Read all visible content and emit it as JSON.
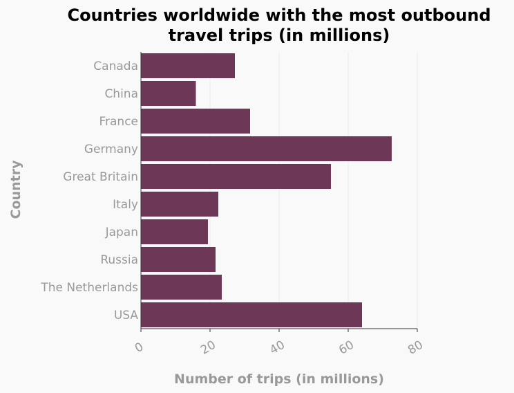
{
  "chart_data": {
    "type": "bar",
    "orientation": "horizontal",
    "title": "Countries worldwide with the most outbound travel trips (in millions)",
    "title_lines": [
      "Countries worldwide with the most outbound",
      "travel trips (in millions)"
    ],
    "xlabel": "Number of trips (in millions)",
    "ylabel": "Country",
    "categories": [
      "Canada",
      "China",
      "France",
      "Germany",
      "Great Britain",
      "Italy",
      "Japan",
      "Russia",
      "The Netherlands",
      "USA"
    ],
    "values": [
      27.2,
      15.9,
      31.6,
      72.6,
      55.0,
      22.4,
      19.4,
      21.6,
      23.4,
      64.0
    ],
    "xlim": [
      0,
      80
    ],
    "xticks": [
      0,
      20,
      40,
      60,
      80
    ],
    "grid": true,
    "bar_color": "#6d3758",
    "background": "#f9f9f9"
  }
}
